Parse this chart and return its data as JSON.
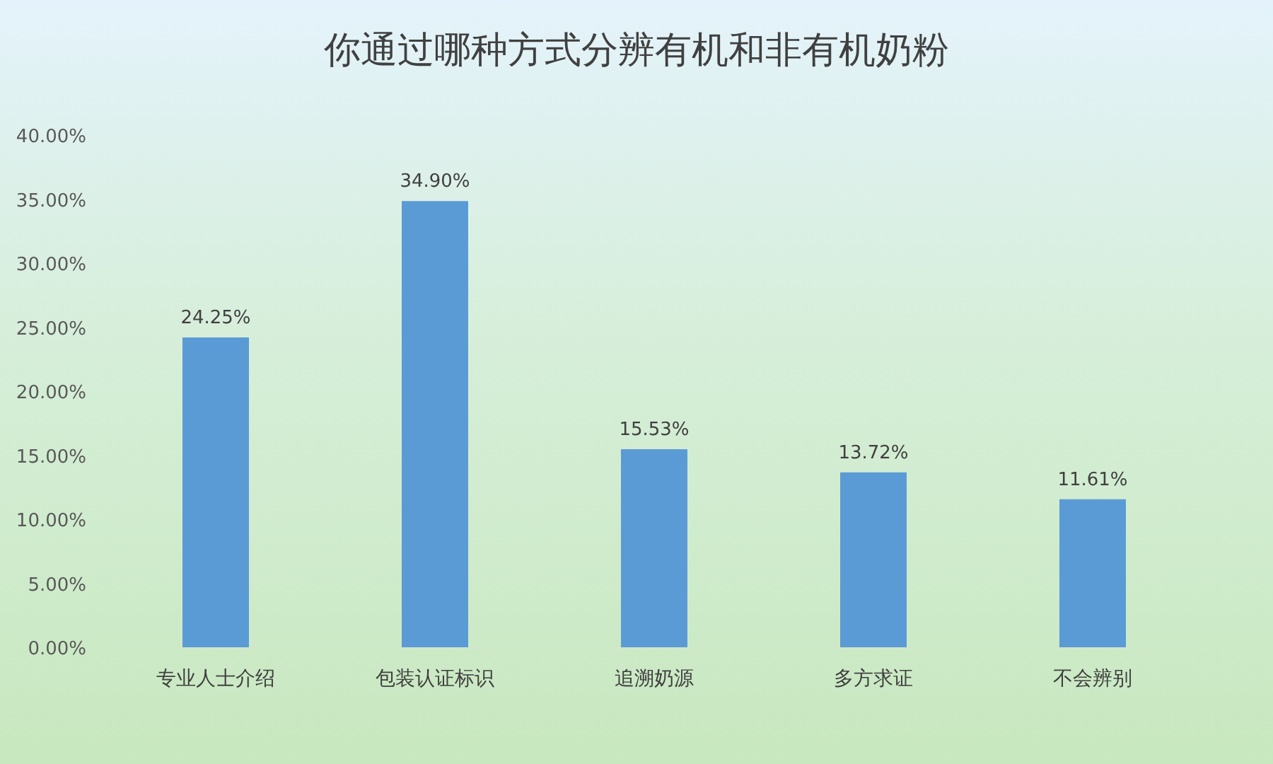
{
  "chart_data": {
    "type": "bar",
    "title": "你通过哪种方式分辨有机和非有机奶粉",
    "categories": [
      "专业人士介绍",
      "包装认证标识",
      "追溯奶源",
      "多方求证",
      "不会辨别"
    ],
    "values": [
      24.25,
      34.9,
      15.53,
      13.72,
      11.61
    ],
    "value_labels": [
      "24.25%",
      "34.90%",
      "15.53%",
      "13.72%",
      "11.61%"
    ],
    "color": "#5b9bd5",
    "ylim": [
      0,
      40
    ],
    "yticks": [
      {
        "value": 0,
        "label": "0.00%"
      },
      {
        "value": 5,
        "label": "5.00%"
      },
      {
        "value": 10,
        "label": "10.00%"
      },
      {
        "value": 15,
        "label": "15.00%"
      },
      {
        "value": 20,
        "label": "20.00%"
      },
      {
        "value": 25,
        "label": "25.00%"
      },
      {
        "value": 30,
        "label": "30.00%"
      },
      {
        "value": 35,
        "label": "35.00%"
      },
      {
        "value": 40,
        "label": "40.00%"
      }
    ]
  }
}
